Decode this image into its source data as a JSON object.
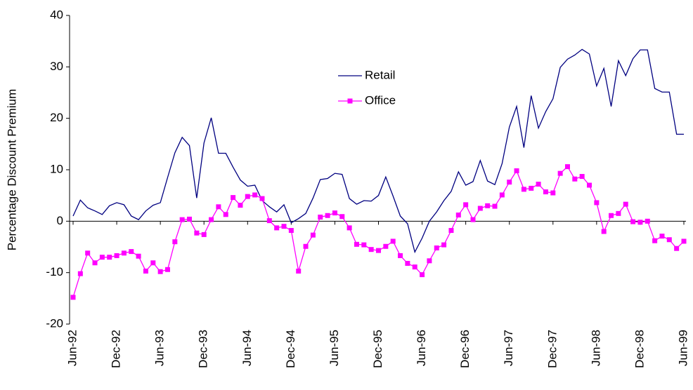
{
  "chart_data": {
    "type": "line",
    "y_label": "Percentage Discount Premium",
    "categories": [
      "Jun-92",
      null,
      null,
      null,
      null,
      null,
      "Dec-92",
      null,
      null,
      null,
      null,
      null,
      "Jun-93",
      null,
      null,
      null,
      null,
      null,
      "Dec-93",
      null,
      null,
      null,
      null,
      null,
      "Jun-94",
      null,
      null,
      null,
      null,
      null,
      "Dec-94",
      null,
      null,
      null,
      null,
      null,
      "Jun-95",
      null,
      null,
      null,
      null,
      null,
      "Dec-95",
      null,
      null,
      null,
      null,
      null,
      "Jun-96",
      null,
      null,
      null,
      null,
      null,
      "Dec-96",
      null,
      null,
      null,
      null,
      null,
      "Jun-97",
      null,
      null,
      null,
      null,
      null,
      "Dec-97",
      null,
      null,
      null,
      null,
      null,
      "Jun-98",
      null,
      null,
      null,
      null,
      null,
      "Dec-98",
      null,
      null,
      null,
      null,
      null,
      "Jun-99"
    ],
    "series": [
      {
        "name": "Retail",
        "color": "#000080",
        "marker": false,
        "values": [
          1,
          4.1,
          2.6,
          2,
          1.3,
          3,
          3.6,
          3.2,
          1,
          0.3,
          2,
          3.1,
          3.6,
          8.5,
          13.3,
          16.3,
          14.7,
          4.5,
          15.2,
          20.1,
          13.2,
          13.2,
          10.5,
          8,
          6.8,
          7,
          4,
          2.8,
          1.8,
          3.2,
          -0.3,
          0.5,
          1.5,
          4.5,
          8.1,
          8.3,
          9.3,
          9.1,
          4.4,
          3.3,
          4,
          3.9,
          5,
          8.6,
          4.9,
          1,
          -0.5,
          -6,
          -3.3,
          0,
          1.8,
          4,
          5.8,
          9.6,
          7,
          7.7,
          11.8,
          7.8,
          7.1,
          11.2,
          18.3,
          22.3,
          14.3,
          24.4,
          18.1,
          21.3,
          23.8,
          29.9,
          31.5,
          32.3,
          33.4,
          32.5,
          26.3,
          29.7,
          22.3,
          31.2,
          28.3,
          31.6,
          33.3,
          33.3,
          25.8,
          25.1,
          25.1,
          16.9,
          16.9
        ]
      },
      {
        "name": "Office",
        "color": "#ff00ff",
        "marker": true,
        "values": [
          -14.8,
          -10.2,
          -6.2,
          -8.1,
          -7,
          -7,
          -6.7,
          -6.2,
          -5.9,
          -6.8,
          -9.7,
          -8.1,
          -9.8,
          -9.4,
          -4,
          0.3,
          0.4,
          -2.3,
          -2.6,
          0.3,
          2.8,
          1.3,
          4.6,
          3.1,
          4.8,
          5.1,
          4.4,
          0.1,
          -1.3,
          -1,
          -1.8,
          -9.7,
          -4.9,
          -2.7,
          0.8,
          1.1,
          1.6,
          0.9,
          -1.3,
          -4.5,
          -4.6,
          -5.5,
          -5.7,
          -4.9,
          -3.9,
          -6.7,
          -8.2,
          -8.9,
          -10.4,
          -7.7,
          -5.2,
          -4.6,
          -1.8,
          1.2,
          3.2,
          0.3,
          2.5,
          3,
          2.9,
          5.1,
          7.6,
          9.8,
          6.2,
          6.4,
          7.2,
          5.7,
          5.5,
          9.3,
          10.6,
          8.2,
          8.7,
          7,
          3.6,
          -2,
          1.1,
          1.5,
          3.3,
          -0.1,
          -0.2,
          0,
          -3.8,
          -2.9,
          -3.6,
          -5.3,
          -3.9
        ]
      }
    ],
    "ylim": [
      -20,
      40
    ],
    "yticks": [
      -20,
      -10,
      0,
      10,
      20,
      30,
      40
    ],
    "grid": false
  }
}
